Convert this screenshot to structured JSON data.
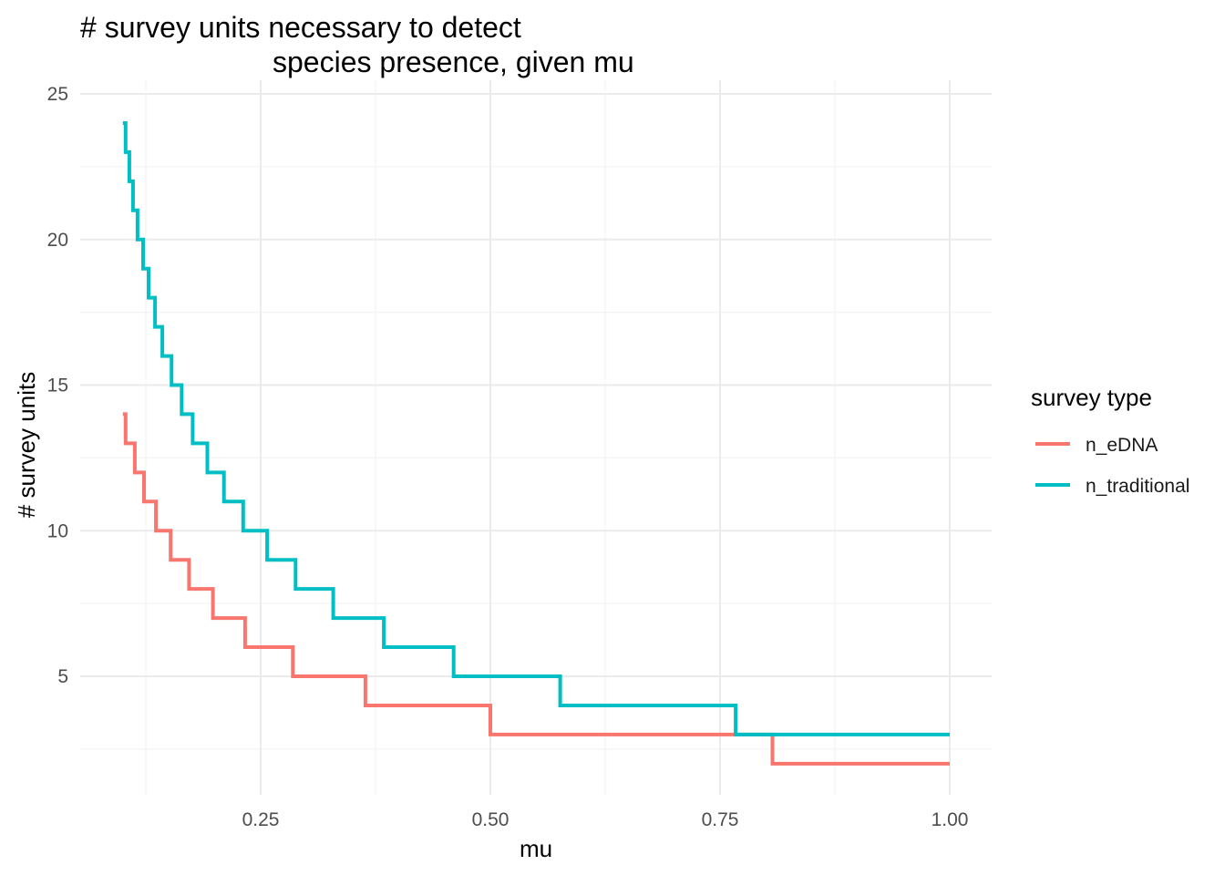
{
  "chart_data": {
    "type": "line",
    "step": true,
    "title_lines": [
      "# survey units necessary to detect",
      "species presence, given mu"
    ],
    "xlabel": "mu",
    "ylabel": "# survey units",
    "xlim": [
      0.1,
      1.0
    ],
    "ylim": [
      1.0,
      25.0
    ],
    "x_ticks": [
      0.25,
      0.5,
      0.75,
      1.0
    ],
    "x_tick_labels": [
      "0.25",
      "0.50",
      "0.75",
      "1.00"
    ],
    "y_ticks": [
      5,
      10,
      15,
      20,
      25
    ],
    "y_tick_labels": [
      "5",
      "10",
      "15",
      "20",
      "25"
    ],
    "grid": true,
    "legend": {
      "title": "survey type",
      "position": "right"
    },
    "series": [
      {
        "name": "n_eDNA",
        "color": "#F8766D",
        "points": [
          [
            0.1,
            14
          ],
          [
            0.103,
            13
          ],
          [
            0.113,
            12
          ],
          [
            0.123,
            11
          ],
          [
            0.136,
            10
          ],
          [
            0.152,
            9
          ],
          [
            0.172,
            8
          ],
          [
            0.198,
            7
          ],
          [
            0.233,
            6
          ],
          [
            0.285,
            5
          ],
          [
            0.364,
            4
          ],
          [
            0.5,
            3
          ],
          [
            0.807,
            2
          ],
          [
            1.0,
            2
          ]
        ]
      },
      {
        "name": "n_traditional",
        "color": "#00BFC4",
        "points": [
          [
            0.1,
            24
          ],
          [
            0.103,
            23
          ],
          [
            0.107,
            22
          ],
          [
            0.111,
            21
          ],
          [
            0.116,
            20
          ],
          [
            0.122,
            19
          ],
          [
            0.128,
            18
          ],
          [
            0.135,
            17
          ],
          [
            0.143,
            16
          ],
          [
            0.153,
            15
          ],
          [
            0.164,
            14
          ],
          [
            0.176,
            13
          ],
          [
            0.192,
            12
          ],
          [
            0.21,
            11
          ],
          [
            0.231,
            10
          ],
          [
            0.257,
            9
          ],
          [
            0.288,
            8
          ],
          [
            0.329,
            7
          ],
          [
            0.384,
            6
          ],
          [
            0.46,
            5
          ],
          [
            0.576,
            4
          ],
          [
            0.767,
            3
          ],
          [
            1.0,
            3
          ]
        ]
      }
    ]
  }
}
